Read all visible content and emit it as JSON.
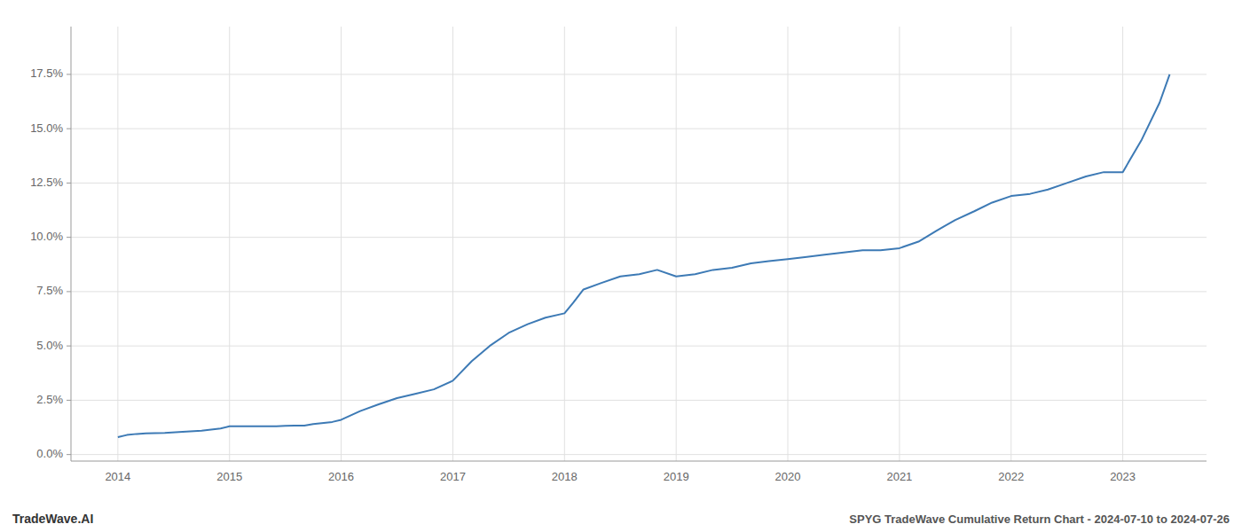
{
  "chart_data": {
    "type": "line",
    "title": "SPYG TradeWave Cumulative Return Chart - 2024-07-10 to 2024-07-26",
    "annotations": [
      "TradeWave.AI"
    ],
    "color": "#3d7ab5",
    "grid": true,
    "x": [
      2014.0,
      2014.08,
      2014.17,
      2014.25,
      2014.42,
      2014.58,
      2014.75,
      2014.92,
      2015.0,
      2015.17,
      2015.33,
      2015.42,
      2015.5,
      2015.58,
      2015.67,
      2015.75,
      2015.92,
      2016.0,
      2016.17,
      2016.33,
      2016.5,
      2016.67,
      2016.83,
      2017.0,
      2017.17,
      2017.33,
      2017.5,
      2017.67,
      2017.83,
      2018.0,
      2018.08,
      2018.17,
      2018.33,
      2018.5,
      2018.67,
      2018.83,
      2019.0,
      2019.17,
      2019.33,
      2019.5,
      2019.67,
      2019.83,
      2020.0,
      2020.17,
      2020.33,
      2020.5,
      2020.67,
      2020.83,
      2021.0,
      2021.17,
      2021.33,
      2021.5,
      2021.67,
      2021.83,
      2022.0,
      2022.17,
      2022.33,
      2022.5,
      2022.67,
      2022.83,
      2023.0,
      2023.17,
      2023.33,
      2023.42
    ],
    "values": [
      0.008,
      0.009,
      0.0095,
      0.0098,
      0.01,
      0.0105,
      0.011,
      0.012,
      0.013,
      0.013,
      0.013,
      0.013,
      0.0132,
      0.0133,
      0.0133,
      0.014,
      0.015,
      0.016,
      0.02,
      0.023,
      0.026,
      0.028,
      0.03,
      0.034,
      0.043,
      0.05,
      0.056,
      0.06,
      0.063,
      0.065,
      0.07,
      0.076,
      0.079,
      0.082,
      0.083,
      0.085,
      0.082,
      0.083,
      0.085,
      0.086,
      0.088,
      0.089,
      0.09,
      0.091,
      0.092,
      0.093,
      0.094,
      0.094,
      0.095,
      0.098,
      0.103,
      0.108,
      0.112,
      0.116,
      0.119,
      0.12,
      0.122,
      0.125,
      0.128,
      0.13,
      0.13,
      0.145,
      0.162,
      0.175
    ],
    "xlim": [
      2013.58,
      2023.75
    ],
    "ylim": [
      -0.003,
      0.197
    ],
    "xticks": [
      2014,
      2015,
      2016,
      2017,
      2018,
      2019,
      2020,
      2021,
      2022,
      2023
    ],
    "yticks": [
      {
        "value": 0.0,
        "label": "0.0%"
      },
      {
        "value": 0.025,
        "label": "2.5%"
      },
      {
        "value": 0.05,
        "label": "5.0%"
      },
      {
        "value": 0.075,
        "label": "7.5%"
      },
      {
        "value": 0.1,
        "label": "10.0%"
      },
      {
        "value": 0.125,
        "label": "12.5%"
      },
      {
        "value": 0.15,
        "label": "15.0%"
      },
      {
        "value": 0.175,
        "label": "17.5%"
      }
    ]
  }
}
